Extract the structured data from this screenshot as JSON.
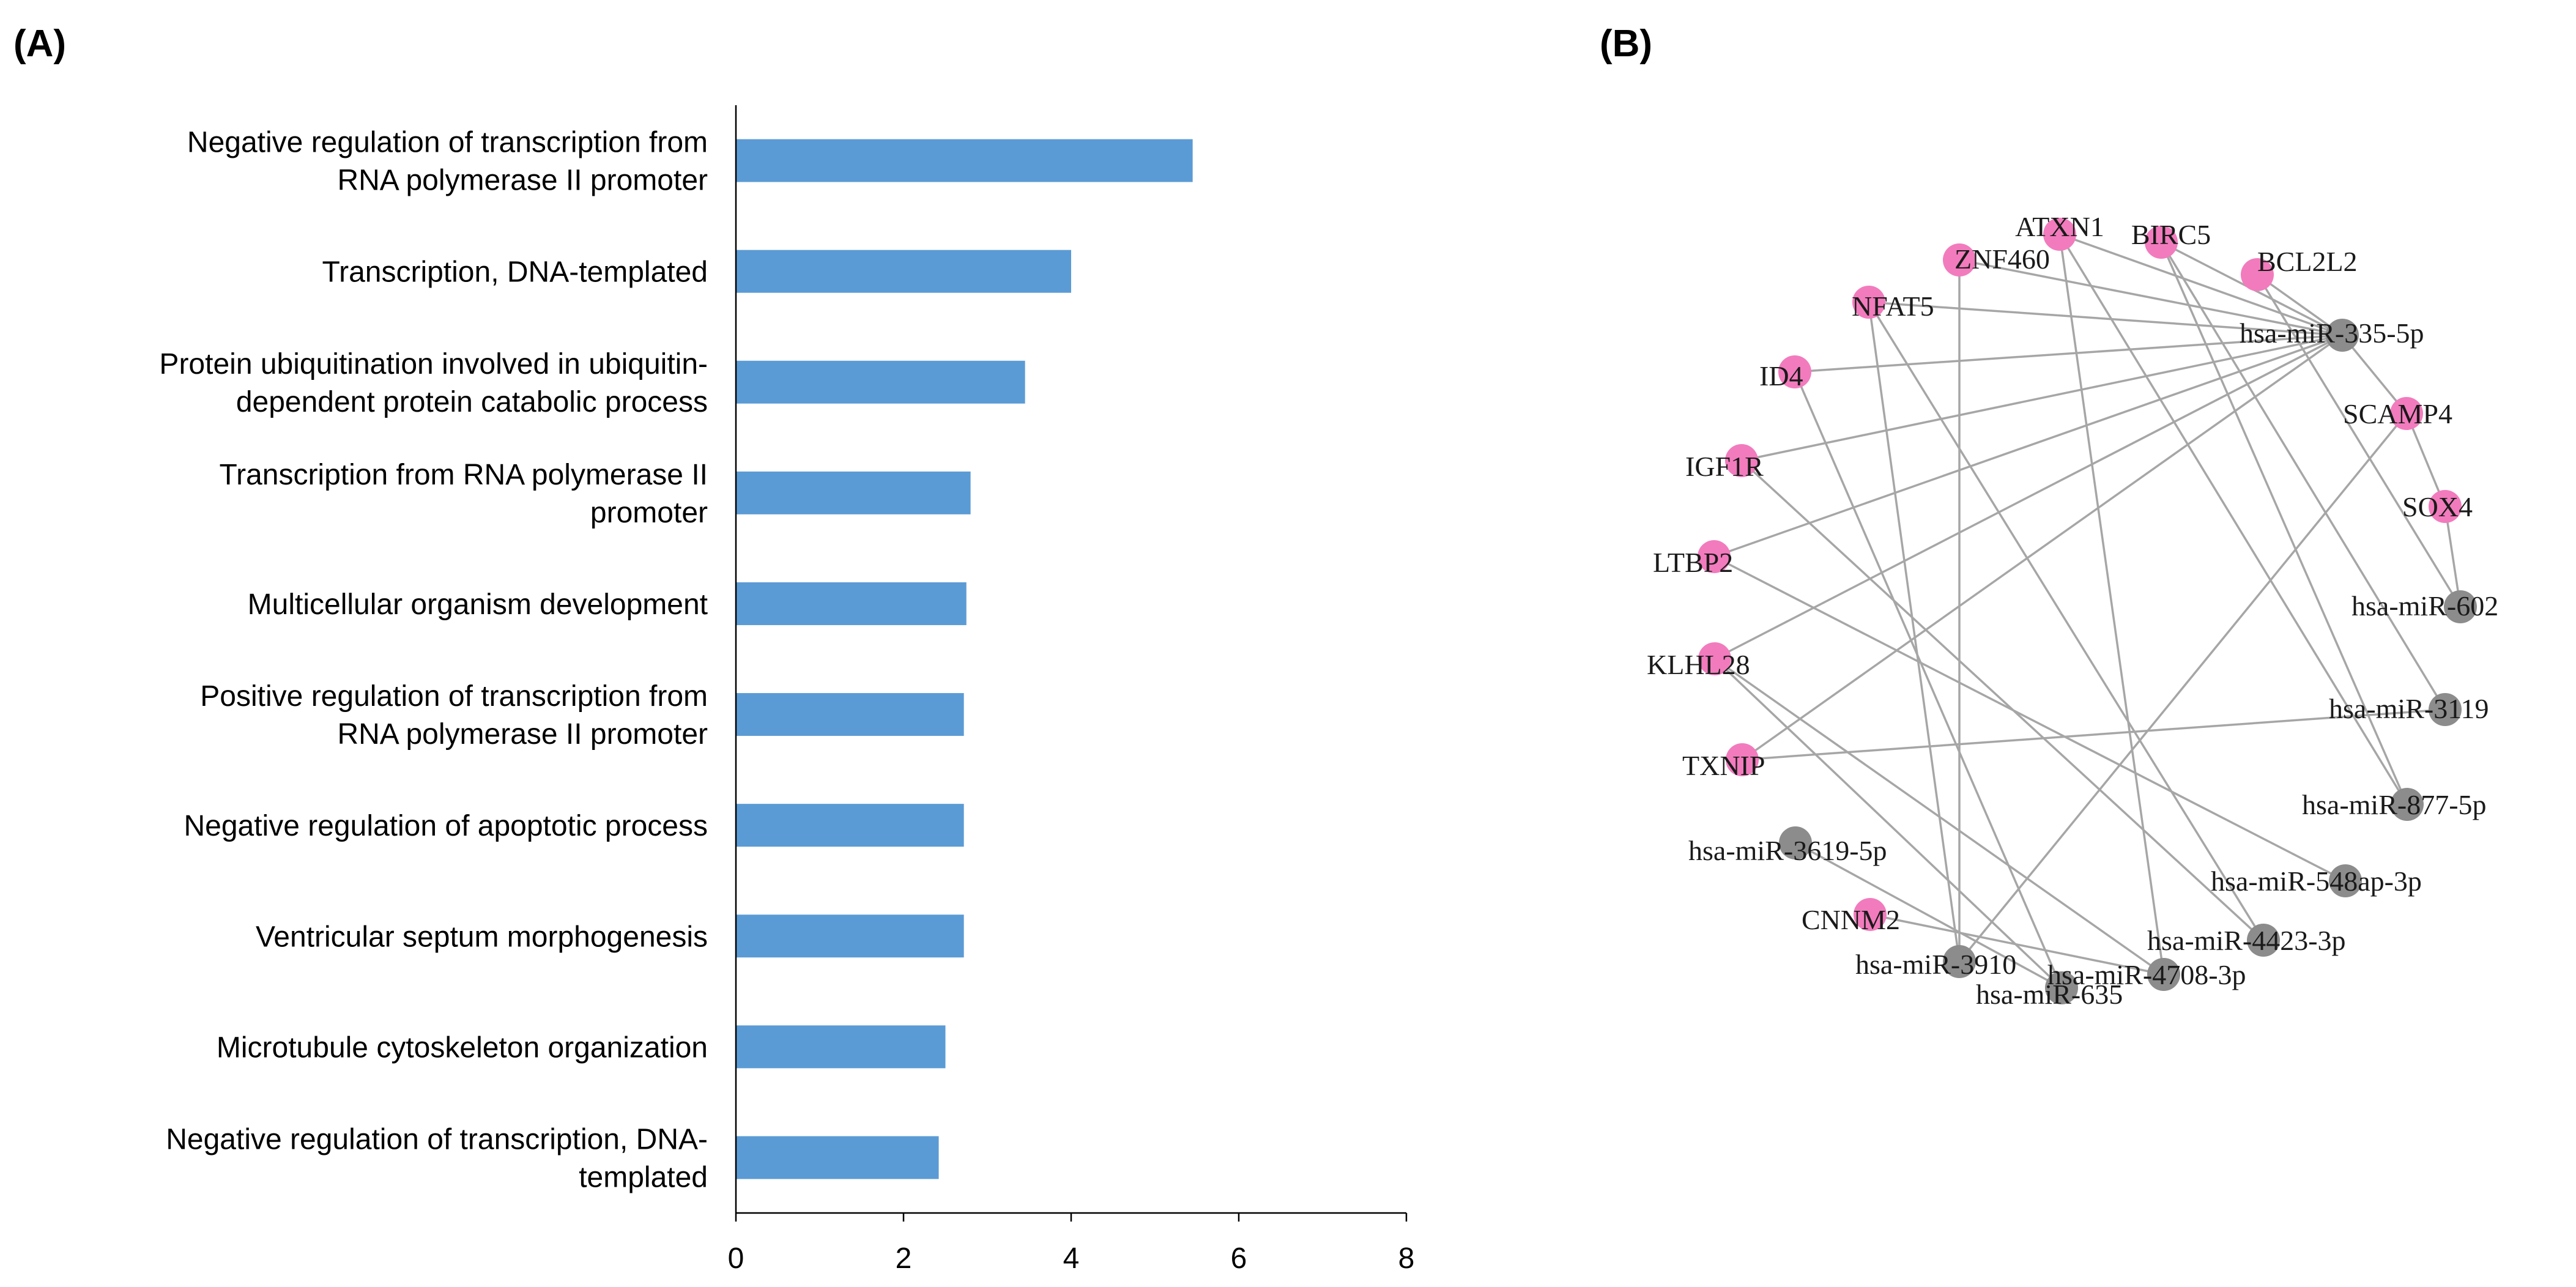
{
  "panels": {
    "a_label": "(A)",
    "b_label": "(B)"
  },
  "colors": {
    "bar": "#5b9bd5",
    "gene_node": "#f27bbd",
    "mirna_node": "#8c8c8c",
    "edge": "#a6a6a6"
  },
  "chart_data": {
    "type": "bar",
    "orientation": "horizontal",
    "title": "",
    "xlabel": "",
    "ylabel": "",
    "xlim": [
      0,
      8
    ],
    "xticks": [
      "0",
      "2",
      "4",
      "6",
      "8"
    ],
    "grid": false,
    "categories": [
      [
        "Negative regulation of transcription from",
        "RNA polymerase II promoter"
      ],
      [
        "Transcription, DNA-templated"
      ],
      [
        "Protein ubiquitination involved in ubiquitin-",
        "dependent protein catabolic process"
      ],
      [
        "Transcription from RNA polymerase II",
        "promoter"
      ],
      [
        "Multicellular organism development"
      ],
      [
        "Positive regulation of transcription from",
        "RNA polymerase II promoter"
      ],
      [
        "Negative regulation of apoptotic process"
      ],
      [
        "Ventricular septum morphogenesis"
      ],
      [
        "Microtubule cytoskeleton organization"
      ],
      [
        "Negative regulation of transcription, DNA-",
        "templated"
      ]
    ],
    "values": [
      5.45,
      4.0,
      3.45,
      2.8,
      2.75,
      2.72,
      2.72,
      2.72,
      2.5,
      2.42
    ]
  },
  "network": {
    "nodes": [
      {
        "id": "ATXN1",
        "label": "ATXN1",
        "type": "gene"
      },
      {
        "id": "BIRC5",
        "label": "BIRC5",
        "type": "gene"
      },
      {
        "id": "BCL2L2",
        "label": "BCL2L2",
        "type": "gene"
      },
      {
        "id": "ZNF460",
        "label": "ZNF460",
        "type": "gene"
      },
      {
        "id": "NFAT5",
        "label": "NFAT5",
        "type": "gene"
      },
      {
        "id": "ID4",
        "label": "ID4",
        "type": "gene"
      },
      {
        "id": "IGF1R",
        "label": "IGF1R",
        "type": "gene"
      },
      {
        "id": "LTBP2",
        "label": "LTBP2",
        "type": "gene"
      },
      {
        "id": "KLHL28",
        "label": "KLHL28",
        "type": "gene"
      },
      {
        "id": "TXNIP",
        "label": "TXNIP",
        "type": "gene"
      },
      {
        "id": "CNNM2",
        "label": "CNNM2",
        "type": "gene"
      },
      {
        "id": "SCAMP4",
        "label": "SCAMP4",
        "type": "gene"
      },
      {
        "id": "SOX4",
        "label": "SOX4",
        "type": "gene"
      },
      {
        "id": "m335",
        "label": "hsa-miR-335-5p",
        "type": "mirna"
      },
      {
        "id": "m602",
        "label": "hsa-miR-602",
        "type": "mirna"
      },
      {
        "id": "m3119",
        "label": "hsa-miR-3119",
        "type": "mirna"
      },
      {
        "id": "m877",
        "label": "hsa-miR-877-5p",
        "type": "mirna"
      },
      {
        "id": "m548",
        "label": "hsa-miR-548ap-3p",
        "type": "mirna"
      },
      {
        "id": "m4423",
        "label": "hsa-miR-4423-3p",
        "type": "mirna"
      },
      {
        "id": "m4708",
        "label": "hsa-miR-4708-3p",
        "type": "mirna"
      },
      {
        "id": "m635",
        "label": "hsa-miR-635",
        "type": "mirna"
      },
      {
        "id": "m3910",
        "label": "hsa-miR-3910",
        "type": "mirna"
      },
      {
        "id": "m3619",
        "label": "hsa-miR-3619-5p",
        "type": "mirna"
      }
    ],
    "edges": [
      [
        "m335",
        "BCL2L2"
      ],
      [
        "m335",
        "BIRC5"
      ],
      [
        "m335",
        "ATXN1"
      ],
      [
        "m335",
        "ZNF460"
      ],
      [
        "m335",
        "NFAT5"
      ],
      [
        "m335",
        "ID4"
      ],
      [
        "m335",
        "IGF1R"
      ],
      [
        "m335",
        "LTBP2"
      ],
      [
        "m335",
        "KLHL28"
      ],
      [
        "m335",
        "TXNIP"
      ],
      [
        "m335",
        "SCAMP4"
      ],
      [
        "SCAMP4",
        "SOX4"
      ],
      [
        "SOX4",
        "m602"
      ],
      [
        "SCAMP4",
        "m3910"
      ],
      [
        "BIRC5",
        "m3119"
      ],
      [
        "BCL2L2",
        "m602"
      ],
      [
        "ATXN1",
        "m4708"
      ],
      [
        "ZNF460",
        "m3910"
      ],
      [
        "NFAT5",
        "m4423"
      ],
      [
        "ID4",
        "m635"
      ],
      [
        "IGF1R",
        "m4423"
      ],
      [
        "LTBP2",
        "m548"
      ],
      [
        "KLHL28",
        "m635"
      ],
      [
        "TXNIP",
        "m3119"
      ],
      [
        "CNNM2",
        "m4708"
      ],
      [
        "m3619",
        "m635"
      ],
      [
        "NFAT5",
        "m3910"
      ],
      [
        "ATXN1",
        "m877"
      ],
      [
        "KLHL28",
        "m4708"
      ],
      [
        "BIRC5",
        "m877"
      ]
    ]
  }
}
